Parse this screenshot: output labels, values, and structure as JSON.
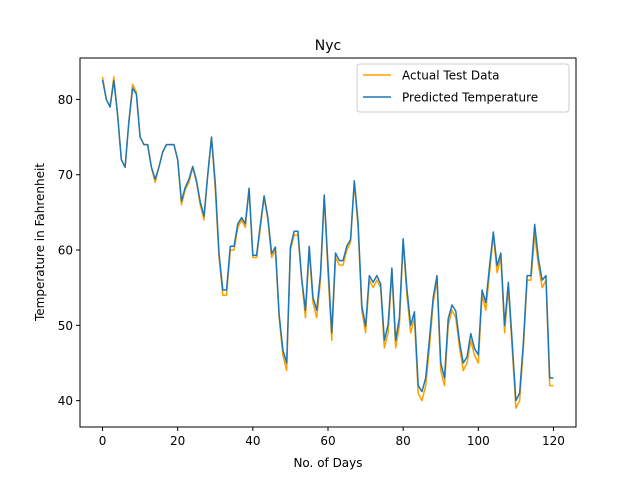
{
  "chart_data": {
    "type": "line",
    "title": "Nyc",
    "xlabel": "No. of Days",
    "ylabel": "Temperature in Fahrenheit",
    "xlim": [
      -6,
      126
    ],
    "ylim": [
      36.5,
      85.5
    ],
    "xticks": [
      0,
      20,
      40,
      60,
      80,
      100,
      120
    ],
    "yticks": [
      40,
      50,
      60,
      70,
      80
    ],
    "grid": false,
    "legend_position": "upper right",
    "series": [
      {
        "name": "Actual Test Data",
        "color": "#ff9f00",
        "y": [
          83,
          80,
          79,
          83,
          78,
          72,
          71,
          77,
          82,
          81,
          75,
          74,
          74,
          71,
          69,
          71,
          73,
          74,
          74,
          74,
          72,
          66,
          68,
          69,
          71,
          69,
          66,
          64,
          70,
          75,
          68,
          59,
          54,
          54,
          60,
          60,
          63,
          64,
          63,
          68,
          59,
          59,
          63,
          67,
          64,
          59,
          60,
          51,
          46,
          44,
          60,
          62,
          62,
          56,
          51,
          60,
          53,
          51,
          56,
          67,
          57,
          48,
          59,
          58,
          58,
          60,
          61,
          69,
          63,
          52,
          49,
          56,
          55,
          56,
          55,
          47,
          49,
          57,
          47,
          50,
          61,
          54,
          49,
          51,
          41,
          40,
          42,
          47,
          53,
          56,
          44,
          42,
          50,
          52,
          51,
          47,
          44,
          45,
          48,
          46,
          45,
          54,
          52,
          57,
          62,
          57,
          59,
          49,
          55,
          47,
          39,
          40,
          47,
          56,
          56,
          62,
          58,
          55,
          56,
          42,
          42
        ]
      },
      {
        "name": "Predicted Temperature",
        "color": "#1f77b4",
        "y": [
          82.6,
          80,
          79,
          82.5,
          78,
          72,
          71,
          77,
          81.5,
          80.7,
          75,
          74,
          74,
          71,
          69.4,
          71,
          73,
          74,
          74,
          74,
          72,
          66.5,
          68.3,
          69.4,
          71.1,
          69.2,
          66.4,
          64.5,
          70,
          75,
          68.9,
          59.5,
          54.7,
          54.7,
          60.5,
          60.5,
          63.5,
          64.3,
          63.5,
          68.2,
          59.3,
          59.3,
          63.4,
          67.2,
          64.3,
          59.5,
          60.4,
          51.4,
          46.7,
          45,
          60.4,
          62.5,
          62.5,
          56.2,
          52,
          60.5,
          53.7,
          52,
          56.8,
          67.3,
          58,
          49,
          59.6,
          58.6,
          58.6,
          60.5,
          61.4,
          69.2,
          63.7,
          52.6,
          49.9,
          56.6,
          55.7,
          56.6,
          55.5,
          48,
          50.1,
          57.6,
          48,
          51,
          61.5,
          54.8,
          50,
          51.8,
          42,
          41.2,
          43,
          48.2,
          53.7,
          56.6,
          45,
          43,
          50.9,
          52.7,
          51.9,
          47.8,
          45,
          45.8,
          48.9,
          46.9,
          46.1,
          54.7,
          53,
          57.9,
          62.4,
          57.9,
          59.6,
          50,
          55.7,
          47.9,
          40,
          41,
          47.8,
          56.6,
          56.6,
          63.4,
          58.8,
          56,
          56.6,
          43,
          43
        ]
      }
    ]
  }
}
